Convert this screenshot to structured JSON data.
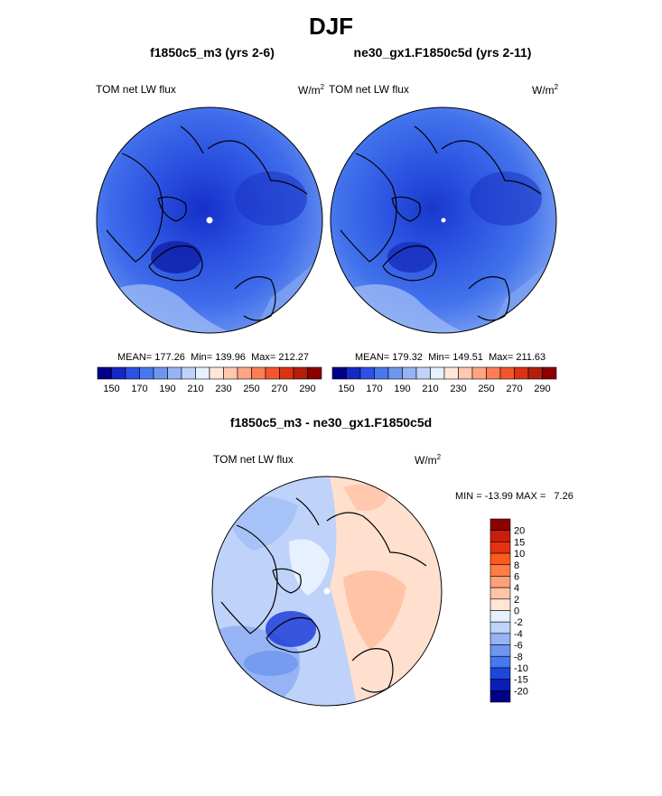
{
  "season": "DJF",
  "chart_data": [
    {
      "type": "heatmap",
      "title": "f1850c5_m3 (yrs 2-6)",
      "left_label": "TOM net LW flux",
      "units_base": "W/m",
      "units_exp": "2",
      "stats": {
        "mean_label": "MEAN=",
        "mean": "177.26",
        "min_label": "Min=",
        "min": "139.96",
        "max_label": "Max=",
        "max": "212.27"
      },
      "colorbar": {
        "orientation": "horizontal",
        "colors": [
          "#00008b",
          "#1428c8",
          "#2d50e6",
          "#4678f0",
          "#6e96f0",
          "#96b4f5",
          "#bed2fa",
          "#e6f0ff",
          "#ffe6d7",
          "#ffc8af",
          "#ffa582",
          "#ff7d55",
          "#f5552d",
          "#dc3214",
          "#b41e0a",
          "#8c0000"
        ],
        "tick_labels": [
          "150",
          "170",
          "190",
          "210",
          "230",
          "250",
          "270",
          "290"
        ]
      }
    },
    {
      "type": "heatmap",
      "title": "ne30_gx1.F1850c5d (yrs 2-11)",
      "left_label": "TOM net LW flux",
      "units_base": "W/m",
      "units_exp": "2",
      "stats": {
        "mean_label": "MEAN=",
        "mean": "179.32",
        "min_label": "Min=",
        "min": "149.51",
        "max_label": "Max=",
        "max": "211.63"
      },
      "colorbar": {
        "orientation": "horizontal",
        "colors": [
          "#00008b",
          "#1428c8",
          "#2d50e6",
          "#4678f0",
          "#6e96f0",
          "#96b4f5",
          "#bed2fa",
          "#e6f0ff",
          "#ffe6d7",
          "#ffc8af",
          "#ffa582",
          "#ff7d55",
          "#f5552d",
          "#dc3214",
          "#b41e0a",
          "#8c0000"
        ],
        "tick_labels": [
          "150",
          "170",
          "190",
          "210",
          "230",
          "250",
          "270",
          "290"
        ]
      }
    },
    {
      "type": "heatmap",
      "title": "f1850c5_m3 - ne30_gx1.F1850c5d",
      "left_label": "TOM net LW flux",
      "units_base": "W/m",
      "units_exp": "2",
      "stats_text": "MIN = -13.99 MAX =   7.26",
      "colorbar": {
        "orientation": "vertical",
        "colors_top_to_bottom": [
          "#8c0000",
          "#c81e0a",
          "#e6320f",
          "#ff5a1e",
          "#ff7d46",
          "#ffa078",
          "#ffc3a5",
          "#ffe6d7",
          "#e6f0ff",
          "#bed2fa",
          "#96b4f5",
          "#6e96f0",
          "#4678f0",
          "#1e46dc",
          "#0a1eb4",
          "#00008b"
        ],
        "tick_labels_top_to_bottom": [
          "20",
          "15",
          "10",
          "8",
          "6",
          "4",
          "2",
          "0",
          "-2",
          "-4",
          "-6",
          "-8",
          "-10",
          "-15",
          "-20"
        ]
      }
    }
  ]
}
